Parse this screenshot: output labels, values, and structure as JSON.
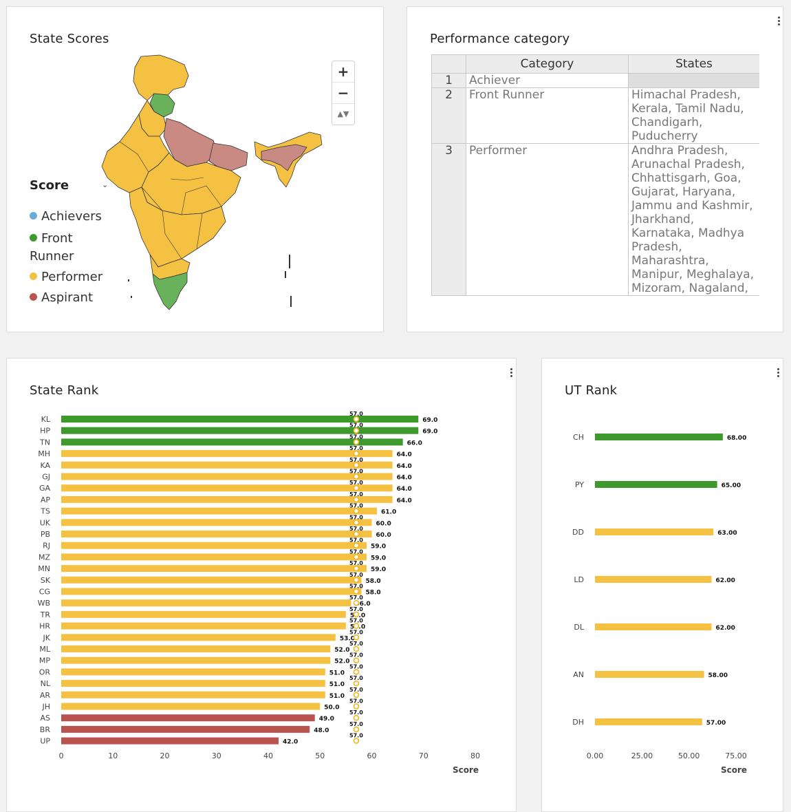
{
  "map_panel": {
    "title": "State Scores",
    "legend_title": "Score",
    "legend": [
      {
        "label": "Achievers",
        "color": "#6aaed6"
      },
      {
        "label": "Front Runner",
        "color": "#3e9a2c"
      },
      {
        "label": "Performer",
        "color": "#f5c142"
      },
      {
        "label": "Aspirant",
        "color": "#c0504d"
      }
    ],
    "zoom": {
      "in": "+",
      "out": "−",
      "reset": "▲▼"
    }
  },
  "category_panel": {
    "title": "Performance category",
    "columns": [
      "Category",
      "States"
    ],
    "rows": [
      {
        "idx": "1",
        "category": "Achiever",
        "states": ""
      },
      {
        "idx": "2",
        "category": "Front Runner",
        "states": "Himachal Pradesh, Kerala, Tamil Nadu, Chandigarh, Puducherry"
      },
      {
        "idx": "3",
        "category": "Performer",
        "states": "Andhra Pradesh, Arunachal Pradesh, Chhattisgarh, Goa, Gujarat, Haryana, Jammu and Kashmir, Jharkhand, Karnataka, Madhya Pradesh, Maharashtra, Manipur, Meghalaya, Mizoram, Nagaland,"
      }
    ]
  },
  "state_rank": {
    "title": "State Rank",
    "chart_data": {
      "type": "bar",
      "orientation": "horizontal",
      "categories": [
        "KL",
        "HP",
        "TN",
        "MH",
        "KA",
        "GJ",
        "GA",
        "AP",
        "TS",
        "UK",
        "PB",
        "RJ",
        "MZ",
        "MN",
        "SK",
        "CG",
        "WB",
        "TR",
        "HR",
        "JK",
        "ML",
        "MP",
        "OR",
        "NL",
        "AR",
        "JH",
        "AS",
        "BR",
        "UP"
      ],
      "values": [
        69,
        69,
        66,
        64,
        64,
        64,
        64,
        64,
        61,
        60,
        60,
        59,
        59,
        59,
        58,
        58,
        56,
        55,
        55,
        53,
        52,
        52,
        51,
        51,
        51,
        50,
        49,
        48,
        42
      ],
      "value_labels": [
        "69.0",
        "69.0",
        "66.0",
        "64.0",
        "64.0",
        "64.0",
        "64.0",
        "64.0",
        "61.0",
        "60.0",
        "60.0",
        "59.0",
        "59.0",
        "59.0",
        "58.0",
        "58.0",
        "56.0",
        "55.0",
        "55.0",
        "53.0",
        "52.0",
        "52.0",
        "51.0",
        "51.0",
        "51.0",
        "50.0",
        "49.0",
        "48.0",
        "42.0"
      ],
      "categories_group": [
        "front",
        "front",
        "front",
        "perf",
        "perf",
        "perf",
        "perf",
        "perf",
        "perf",
        "perf",
        "perf",
        "perf",
        "perf",
        "perf",
        "perf",
        "perf",
        "perf",
        "perf",
        "perf",
        "perf",
        "perf",
        "perf",
        "perf",
        "perf",
        "perf",
        "perf",
        "asp",
        "asp",
        "asp"
      ],
      "target": 57.0,
      "target_label": "57.0",
      "xlim": [
        0,
        80
      ],
      "xticks": [
        "0",
        "10",
        "20",
        "30",
        "40",
        "50",
        "60",
        "70",
        "80"
      ],
      "xlabel": "Score",
      "colors": {
        "front": "#3e9a2c",
        "perf": "#f5c142",
        "asp": "#b95450"
      }
    }
  },
  "ut_rank": {
    "title": "UT Rank",
    "chart_data": {
      "type": "bar",
      "orientation": "horizontal",
      "categories": [
        "CH",
        "PY",
        "DD",
        "LD",
        "DL",
        "AN",
        "DH"
      ],
      "values": [
        68,
        65,
        63,
        62,
        62,
        58,
        57
      ],
      "value_labels": [
        "68.00",
        "65.00",
        "63.00",
        "62.00",
        "62.00",
        "58.00",
        "57.00"
      ],
      "categories_group": [
        "front",
        "front",
        "perf",
        "perf",
        "perf",
        "perf",
        "perf"
      ],
      "xlim": [
        0,
        75
      ],
      "xticks": [
        "0.00",
        "25.00",
        "50.00",
        "75.00"
      ],
      "xlabel": "Score",
      "colors": {
        "front": "#3e9a2c",
        "perf": "#f5c142"
      }
    }
  }
}
